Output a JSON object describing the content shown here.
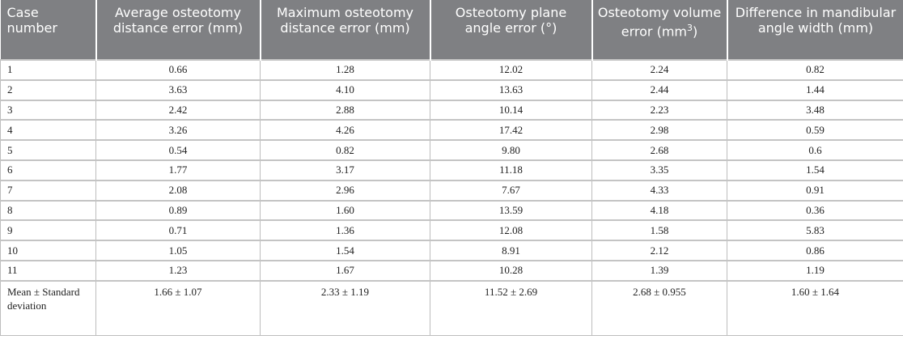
{
  "table": {
    "headers": [
      [
        "Case number"
      ],
      [
        "Average osteotomy distance error (mm)"
      ],
      [
        "Maximum osteotomy distance error (mm)"
      ],
      [
        "Osteotomy plane angle error (°)"
      ],
      [
        "Osteotomy volume error (mm",
        "3",
        ")"
      ],
      [
        "Difference in mandibular angle width (mm)"
      ]
    ],
    "rows": [
      [
        "1",
        "0.66",
        "1.28",
        "12.02",
        "2.24",
        "0.82"
      ],
      [
        "2",
        "3.63",
        "4.10",
        "13.63",
        "2.44",
        "1.44"
      ],
      [
        "3",
        "2.42",
        "2.88",
        "10.14",
        "2.23",
        "3.48"
      ],
      [
        "4",
        "3.26",
        "4.26",
        "17.42",
        "2.98",
        "0.59"
      ],
      [
        "5",
        "0.54",
        "0.82",
        "9.80",
        "2.68",
        "0.6"
      ],
      [
        "6",
        "1.77",
        "3.17",
        "11.18",
        "3.35",
        "1.54"
      ],
      [
        "7",
        "2.08",
        "2.96",
        "7.67",
        "4.33",
        "0.91"
      ],
      [
        "8",
        "0.89",
        "1.60",
        "13.59",
        "4.18",
        "0.36"
      ],
      [
        "9",
        "0.71",
        "1.36",
        "12.08",
        "1.58",
        "5.83"
      ],
      [
        "10",
        "1.05",
        "1.54",
        "8.91",
        "2.12",
        "0.86"
      ],
      [
        "11",
        "1.23",
        "1.67",
        "10.28",
        "1.39",
        "1.19"
      ],
      [
        "Mean ± Standard deviation",
        "1.66 ± 1.07",
        "2.33 ± 1.19",
        "11.52 ± 2.69",
        "2.68 ± 0.955",
        "1.60 ± 1.64"
      ]
    ]
  }
}
